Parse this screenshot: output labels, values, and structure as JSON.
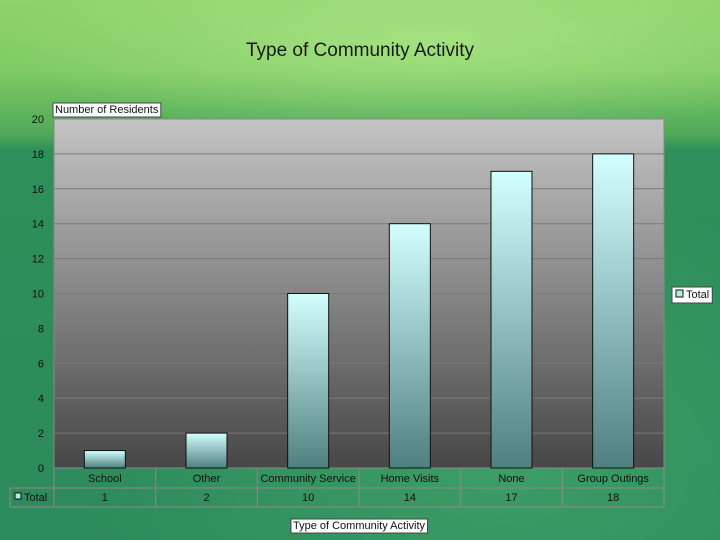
{
  "chart_data": {
    "type": "bar",
    "title": "Type of Community Activity",
    "ylabel": "Number of Residents",
    "xlabel": "Type of Community Activity",
    "categories": [
      "School",
      "Other",
      "Community Service",
      "Home Visits",
      "None",
      "Group Outings"
    ],
    "series": [
      {
        "name": "Total",
        "values": [
          1,
          2,
          10,
          14,
          17,
          18
        ]
      }
    ],
    "ylim": [
      0,
      20
    ],
    "yticks": [
      0,
      2,
      4,
      6,
      8,
      10,
      12,
      14,
      16,
      18,
      20
    ],
    "grid": true,
    "legend": "right",
    "data_table": true
  },
  "colors": {
    "bar_top": "#d4ffff",
    "bar_bottom": "#4f7f7f",
    "plot_top": "#c4c4c4",
    "plot_bottom": "#474747"
  }
}
